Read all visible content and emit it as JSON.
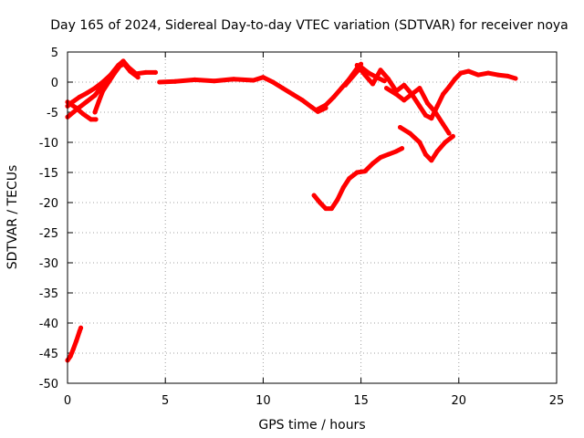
{
  "chart_data": {
    "type": "scatter",
    "title": "Day 165 of 2024, Sidereal Day-to-day VTEC variation (SDTVAR) for receiver noya",
    "xlabel": "GPS time / hours",
    "ylabel": "SDTVAR / TECUs",
    "xlim": [
      0,
      25
    ],
    "ylim": [
      -50,
      5
    ],
    "xticks": [
      0,
      5,
      10,
      15,
      20,
      25
    ],
    "yticks": [
      5,
      0,
      -5,
      -10,
      -15,
      -20,
      -25,
      -30,
      -35,
      -40,
      -45,
      -50
    ],
    "grid": true,
    "legend": "none",
    "series_color": "#ff0000",
    "series": [
      {
        "name": "arc-1",
        "x": [
          0.0,
          0.15,
          0.3,
          0.45,
          0.6,
          0.68
        ],
        "y": [
          -46.2,
          -45.5,
          -44.3,
          -43.0,
          -41.5,
          -40.8
        ]
      },
      {
        "name": "arc-2",
        "x": [
          0.0,
          0.25,
          0.6,
          1.0,
          1.4,
          1.8,
          2.2,
          2.6,
          2.85,
          3.1,
          3.5,
          4.0,
          4.5
        ],
        "y": [
          -4.0,
          -3.3,
          -2.5,
          -1.8,
          -1.0,
          0.0,
          1.2,
          2.8,
          3.5,
          2.5,
          1.4,
          1.6,
          1.6
        ]
      },
      {
        "name": "arc-3",
        "x": [
          0.0,
          0.3,
          0.6,
          1.0,
          1.4,
          1.8,
          2.2,
          2.6,
          2.9,
          3.2,
          3.6
        ],
        "y": [
          -5.8,
          -5.0,
          -4.2,
          -3.2,
          -2.2,
          -0.6,
          1.0,
          2.6,
          3.0,
          1.8,
          0.8
        ]
      },
      {
        "name": "arc-4",
        "x": [
          0.0,
          0.4,
          0.8,
          1.2,
          1.45
        ],
        "y": [
          -3.3,
          -4.2,
          -5.3,
          -6.2,
          -6.2
        ]
      },
      {
        "name": "arc-5",
        "x": [
          1.4,
          1.6,
          1.8,
          2.1,
          2.4,
          2.7
        ],
        "y": [
          -5.0,
          -3.2,
          -1.5,
          0.0,
          1.5,
          2.8
        ]
      },
      {
        "name": "arc-6",
        "x": [
          4.7,
          5.5,
          6.5,
          7.5,
          8.5,
          9.5,
          10.0,
          10.5,
          11.0,
          11.5,
          12.0,
          12.5,
          12.8,
          13.2
        ],
        "y": [
          0.0,
          0.1,
          0.4,
          0.2,
          0.5,
          0.3,
          0.8,
          0.0,
          -1.0,
          -2.0,
          -3.0,
          -4.2,
          -4.9,
          -4.3
        ]
      },
      {
        "name": "arc-7",
        "x": [
          12.8,
          13.2,
          13.6,
          14.0,
          14.4,
          14.8,
          15.0
        ],
        "y": [
          -4.5,
          -3.8,
          -2.5,
          -1.0,
          0.5,
          2.3,
          3.0
        ]
      },
      {
        "name": "arc-8",
        "x": [
          14.2,
          14.6,
          15.0,
          15.4,
          15.8,
          16.2
        ],
        "y": [
          -0.5,
          1.0,
          2.5,
          1.5,
          0.8,
          0.2
        ]
      },
      {
        "name": "arc-9",
        "x": [
          14.8,
          15.2,
          15.6,
          16.0,
          16.4,
          16.8,
          17.2,
          17.6,
          18.0,
          18.4,
          18.8,
          19.2,
          19.5
        ],
        "y": [
          2.8,
          1.2,
          -0.3,
          2.0,
          0.5,
          -1.5,
          -0.5,
          -2.0,
          -1.0,
          -3.5,
          -5.0,
          -7.0,
          -8.5
        ]
      },
      {
        "name": "arc-10",
        "x": [
          16.3,
          16.8,
          17.2,
          17.6,
          18.0,
          18.3,
          18.6
        ],
        "y": [
          -1.0,
          -2.0,
          -3.0,
          -2.0,
          -4.0,
          -5.5,
          -6.0
        ]
      },
      {
        "name": "arc-11",
        "x": [
          18.6,
          18.9,
          19.2,
          19.5,
          19.8,
          20.1,
          20.5,
          21.0,
          21.5,
          22.0,
          22.5,
          22.9
        ],
        "y": [
          -6.0,
          -4.0,
          -2.0,
          -0.8,
          0.5,
          1.5,
          1.8,
          1.2,
          1.5,
          1.2,
          1.0,
          0.6
        ]
      },
      {
        "name": "arc-12",
        "x": [
          17.0,
          17.5,
          18.0,
          18.3,
          18.6,
          18.9,
          19.3,
          19.7
        ],
        "y": [
          -7.5,
          -8.5,
          -10.0,
          -12.0,
          -13.0,
          -11.5,
          -10.0,
          -9.0
        ]
      },
      {
        "name": "arc-13",
        "x": [
          12.6,
          12.9,
          13.2,
          13.5,
          13.8,
          14.1,
          14.4,
          14.8,
          15.2,
          15.6,
          16.0,
          16.4,
          16.8,
          17.1
        ],
        "y": [
          -18.8,
          -20.0,
          -21.0,
          -21.0,
          -19.5,
          -17.5,
          -16.0,
          -15.0,
          -14.8,
          -13.5,
          -12.5,
          -12.0,
          -11.5,
          -11.0
        ]
      }
    ]
  }
}
